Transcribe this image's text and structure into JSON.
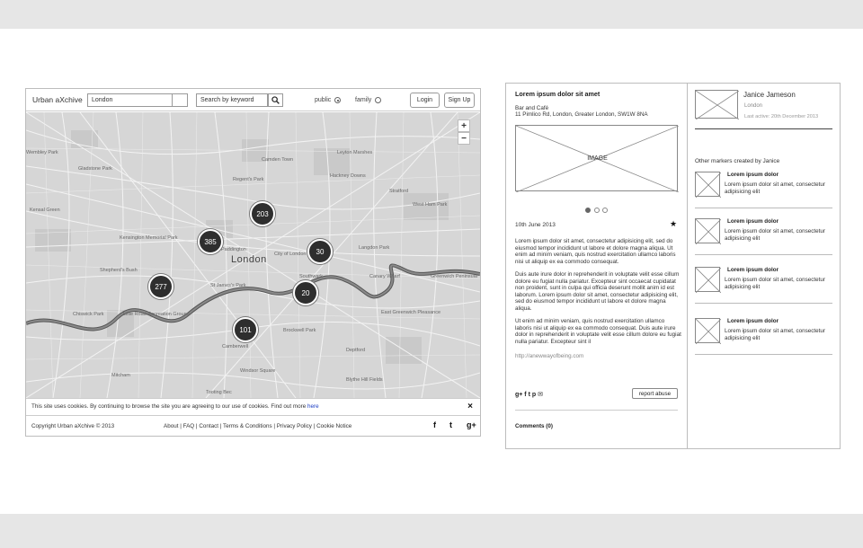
{
  "site": {
    "brand": "Urban aXchive",
    "location_value": "London",
    "keyword_placeholder": "Search by keyword",
    "filters": [
      {
        "label": "public",
        "selected": true
      },
      {
        "label": "family",
        "selected": false
      }
    ],
    "login_label": "Login",
    "signup_label": "Sign Up"
  },
  "map": {
    "zoom_in": "+",
    "zoom_out": "−",
    "city_label": "London",
    "labels": [
      "Wembley Park",
      "Gladstone Park",
      "Kensal Green",
      "Kensington Memorial Park",
      "Shepherd's Bush",
      "Chiswick Park",
      "Lillie Road Recreation Ground",
      "Paddington",
      "Regent's Park",
      "Camden Town",
      "Leyton Marshes",
      "Hackney Downs",
      "Stratford",
      "West Ham Park",
      "Langdon Park",
      "Canary Wharf",
      "Greenwich Peninsula",
      "Deptford",
      "Southwark",
      "City of London",
      "St James's Park",
      "Windsor Square",
      "Blythe Hill Fields",
      "Tooting Bec",
      "Mitcham",
      "Brockwell Park",
      "East Greenwich Pleasance",
      "Camberwell"
    ],
    "clusters": [
      {
        "id": "203",
        "count": "203"
      },
      {
        "id": "385",
        "count": "385"
      },
      {
        "id": "30",
        "count": "30"
      },
      {
        "id": "277",
        "count": "277"
      },
      {
        "id": "20",
        "count": "20"
      },
      {
        "id": "101",
        "count": "101"
      }
    ]
  },
  "cookie": {
    "text": "This site uses cookies. By continuing to browse the site you are agreeing to our use of cookies. Find out more ",
    "link": "here",
    "close": "×"
  },
  "footer": {
    "copyright": "Copyright Urban aXchive © 2013",
    "links": "About | FAQ | Contact | Terms & Conditions | Privacy Policy | Cookie Notice",
    "social": [
      "f",
      "t",
      "g+"
    ]
  },
  "detail": {
    "title": "Lorem ipsum dolor sit amet",
    "category": "Bar and Café",
    "address": "11 Pimlico Rd, London, Greater London, SW1W 8NA",
    "image_label": "IMAGE",
    "date": "10th June 2013",
    "star": "★",
    "para1": "Lorem ipsum dolor sit amet, consectetur adipisicing elit, sed do eiusmod tempor incididunt ut labore et dolore magna aliqua. Ut enim ad minim veniam, quis nostrud exercitation ullamco laboris nisi ut aliquip ex ea commodo consequat.",
    "para2": "Duis aute irure dolor in reprehenderit in voluptate velit esse cillum dolore eu fugiat nulla pariatur. Excepteur sint occaecat cupidatat non proident, sunt in culpa qui officia deserunt mollit anim id est laborum. Lorem ipsum dolor sit amet, consectetur adipisicing elit, sed do eiusmod tempor incididunt ut labore et dolore magna aliqua.",
    "para3": "Ut enim ad minim veniam, quis nostrud exercitation ullamco laboris nisi ut aliquip ex ea commodo consequat. Duis aute irure dolor in reprehenderit in voluptate velit esse cillum dolore eu fugiat nulla pariatur. Excepteur sint il",
    "url": "http://anewwayofbeing.com",
    "share_icons": "g+ f t p ✉",
    "report_label": "report abuse",
    "comments_label": "Comments (0)"
  },
  "user": {
    "name": "Janice Jameson",
    "location": "London",
    "last_active": "Last active: 20th December 2013",
    "other_title": "Other markers created by Janice",
    "markers": [
      {
        "title": "Lorem ipsum dolor",
        "desc": "Lorem ipsum dolor sit amet, consectetur adipisicing elit"
      },
      {
        "title": "Lorem ipsum dolor",
        "desc": "Lorem ipsum dolor sit amet, consectetur adipisicing elit"
      },
      {
        "title": "Lorem ipsum dolor",
        "desc": "Lorem ipsum dolor sit amet, consectetur adipisicing elit"
      },
      {
        "title": "Lorem ipsum dolor",
        "desc": "Lorem ipsum dolor sit amet, consectetur adipisicing elit"
      }
    ]
  }
}
